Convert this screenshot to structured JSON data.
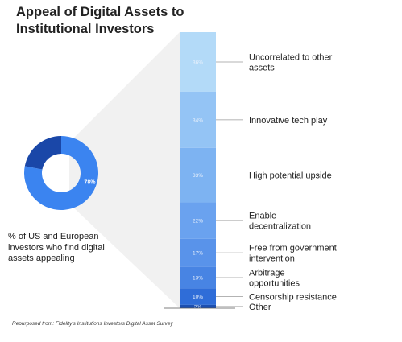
{
  "title": "Appeal of Digital Assets to Institutional Investors",
  "caption": "% of US and European investors who find digital assets appealing",
  "source": "Repurposed from: Fidelity's Institutions Investors Digital Asset Survey",
  "chart_data": [
    {
      "type": "pie",
      "donut": true,
      "slices": [
        {
          "label": "78%",
          "value": 78,
          "color": "#3b84f0"
        },
        {
          "label": "",
          "value": 22,
          "color": "#1a47a8"
        }
      ]
    },
    {
      "type": "bar",
      "stacked": true,
      "orientation": "vertical",
      "categories": [
        "Uncorrelated to other assets",
        "Innovative tech play",
        "High potential upside",
        "Enable decentralization",
        "Free from government intervention",
        "Arbitrage opportunities",
        "Censorship resistance",
        "Other"
      ],
      "values": [
        36,
        34,
        33,
        22,
        17,
        13,
        10,
        2
      ],
      "value_labels": [
        "36%",
        "34%",
        "33%",
        "22%",
        "17%",
        "13%",
        "10%",
        "2%"
      ],
      "colors": [
        "#b3daf8",
        "#94c4f5",
        "#7db3f2",
        "#6aa2ef",
        "#5993ea",
        "#4884e3",
        "#2f6dd8",
        "#1c4fb0"
      ],
      "label_color": "#e8f0fb"
    }
  ]
}
